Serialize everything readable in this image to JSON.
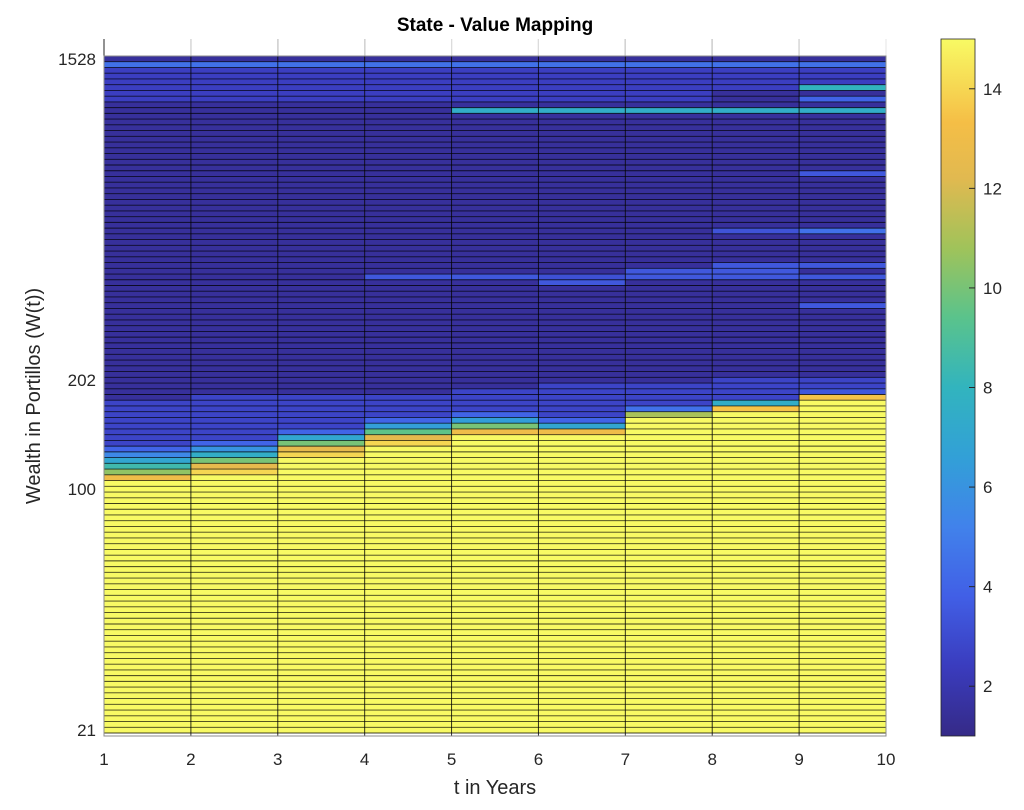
{
  "chart_data": {
    "type": "heatmap",
    "title": "State - Value Mapping",
    "xlabel": "t in Years",
    "ylabel": "Wealth in Portillos (W(t))",
    "x_ticks": [
      "1",
      "2",
      "3",
      "4",
      "5",
      "6",
      "7",
      "8",
      "9",
      "10"
    ],
    "xlim": [
      1,
      10
    ],
    "y_ticks": [
      {
        "label": "1528",
        "row": 0
      },
      {
        "label": "202",
        "row": 56
      },
      {
        "label": "100",
        "row": 75
      },
      {
        "label": "21",
        "row": 117
      }
    ],
    "n_rows": 118,
    "row_order": "top-to-bottom (row 0 = 1528, row 117 = 21)",
    "colormap": "parula",
    "clim": [
      1,
      15
    ],
    "colorbar_ticks": [
      "2",
      "4",
      "6",
      "8",
      "10",
      "12",
      "14"
    ],
    "grid": true,
    "default_value": 1.5,
    "columns": [
      {
        "x": [
          1,
          2
        ],
        "segments": [
          {
            "rows": [
              1,
              1
            ],
            "value": 4.5
          },
          {
            "rows": [
              2,
              7
            ],
            "value": 2.5
          },
          {
            "rows": [
              60,
              67
            ],
            "value": 2.7
          },
          {
            "rows": [
              68,
              68
            ],
            "value": 4
          },
          {
            "rows": [
              69,
              69
            ],
            "value": 5.5
          },
          {
            "rows": [
              70,
              70
            ],
            "value": 7
          },
          {
            "rows": [
              71,
              71
            ],
            "value": 8.5
          },
          {
            "rows": [
              72,
              72
            ],
            "value": 10.5
          },
          {
            "rows": [
              73,
              73
            ],
            "value": 13
          },
          {
            "rows": [
              74,
              117
            ],
            "value": 15
          }
        ]
      },
      {
        "x": [
          2,
          3
        ],
        "segments": [
          {
            "rows": [
              1,
              1
            ],
            "value": 4.5
          },
          {
            "rows": [
              2,
              7
            ],
            "value": 2.5
          },
          {
            "rows": [
              59,
              66
            ],
            "value": 2.7
          },
          {
            "rows": [
              67,
              67
            ],
            "value": 4
          },
          {
            "rows": [
              68,
              68
            ],
            "value": 6
          },
          {
            "rows": [
              69,
              69
            ],
            "value": 7.5
          },
          {
            "rows": [
              70,
              70
            ],
            "value": 10
          },
          {
            "rows": [
              71,
              71
            ],
            "value": 12.5
          },
          {
            "rows": [
              72,
              72
            ],
            "value": 14
          },
          {
            "rows": [
              73,
              117
            ],
            "value": 15
          }
        ]
      },
      {
        "x": [
          3,
          4
        ],
        "segments": [
          {
            "rows": [
              1,
              1
            ],
            "value": 4.5
          },
          {
            "rows": [
              2,
              7
            ],
            "value": 2.5
          },
          {
            "rows": [
              59,
              64
            ],
            "value": 2.7
          },
          {
            "rows": [
              65,
              65
            ],
            "value": 4
          },
          {
            "rows": [
              66,
              66
            ],
            "value": 7
          },
          {
            "rows": [
              67,
              67
            ],
            "value": 10
          },
          {
            "rows": [
              68,
              68
            ],
            "value": 12.5
          },
          {
            "rows": [
              69,
              69
            ],
            "value": 14
          },
          {
            "rows": [
              70,
              117
            ],
            "value": 15
          }
        ]
      },
      {
        "x": [
          4,
          5
        ],
        "segments": [
          {
            "rows": [
              1,
              1
            ],
            "value": 4.5
          },
          {
            "rows": [
              2,
              7
            ],
            "value": 2.5
          },
          {
            "rows": [
              38,
              38
            ],
            "value": 3.5
          },
          {
            "rows": [
              59,
              62
            ],
            "value": 2.7
          },
          {
            "rows": [
              63,
              63
            ],
            "value": 4
          },
          {
            "rows": [
              64,
              64
            ],
            "value": 6.5
          },
          {
            "rows": [
              65,
              65
            ],
            "value": 9.5
          },
          {
            "rows": [
              66,
              66
            ],
            "value": 12.5
          },
          {
            "rows": [
              67,
              67
            ],
            "value": 14
          },
          {
            "rows": [
              68,
              117
            ],
            "value": 15
          }
        ]
      },
      {
        "x": [
          5,
          6
        ],
        "segments": [
          {
            "rows": [
              1,
              1
            ],
            "value": 4.5
          },
          {
            "rows": [
              2,
              7
            ],
            "value": 2.5
          },
          {
            "rows": [
              9,
              9
            ],
            "value": 7.5
          },
          {
            "rows": [
              38,
              38
            ],
            "value": 3.5
          },
          {
            "rows": [
              58,
              61
            ],
            "value": 2.7
          },
          {
            "rows": [
              62,
              62
            ],
            "value": 4
          },
          {
            "rows": [
              63,
              63
            ],
            "value": 6.5
          },
          {
            "rows": [
              64,
              64
            ],
            "value": 10
          },
          {
            "rows": [
              65,
              65
            ],
            "value": 13
          },
          {
            "rows": [
              66,
              117
            ],
            "value": 15
          }
        ]
      },
      {
        "x": [
          6,
          7
        ],
        "segments": [
          {
            "rows": [
              1,
              1
            ],
            "value": 4.5
          },
          {
            "rows": [
              2,
              7
            ],
            "value": 2.5
          },
          {
            "rows": [
              9,
              9
            ],
            "value": 7.5
          },
          {
            "rows": [
              38,
              38
            ],
            "value": 3.2
          },
          {
            "rows": [
              39,
              39
            ],
            "value": 3.5
          },
          {
            "rows": [
              57,
              62
            ],
            "value": 2.7
          },
          {
            "rows": [
              63,
              63
            ],
            "value": 4
          },
          {
            "rows": [
              64,
              64
            ],
            "value": 7
          },
          {
            "rows": [
              65,
              65
            ],
            "value": 13
          },
          {
            "rows": [
              66,
              117
            ],
            "value": 15
          }
        ]
      },
      {
        "x": [
          7,
          8
        ],
        "segments": [
          {
            "rows": [
              1,
              1
            ],
            "value": 4.5
          },
          {
            "rows": [
              2,
              7
            ],
            "value": 2.5
          },
          {
            "rows": [
              9,
              9
            ],
            "value": 7.5
          },
          {
            "rows": [
              37,
              37
            ],
            "value": 3.5
          },
          {
            "rows": [
              38,
              38
            ],
            "value": 3.5
          },
          {
            "rows": [
              57,
              60
            ],
            "value": 2.7
          },
          {
            "rows": [
              61,
              61
            ],
            "value": 4.5
          },
          {
            "rows": [
              62,
              62
            ],
            "value": 11
          },
          {
            "rows": [
              63,
              117
            ],
            "value": 15
          }
        ]
      },
      {
        "x": [
          8,
          9
        ],
        "segments": [
          {
            "rows": [
              1,
              1
            ],
            "value": 4.5
          },
          {
            "rows": [
              2,
              5
            ],
            "value": 2.5
          },
          {
            "rows": [
              9,
              9
            ],
            "value": 7.5
          },
          {
            "rows": [
              30,
              30
            ],
            "value": 3.3
          },
          {
            "rows": [
              36,
              36
            ],
            "value": 3.5
          },
          {
            "rows": [
              37,
              37
            ],
            "value": 3.5
          },
          {
            "rows": [
              38,
              38
            ],
            "value": 3.5
          },
          {
            "rows": [
              56,
              59
            ],
            "value": 2.7
          },
          {
            "rows": [
              60,
              60
            ],
            "value": 7.5
          },
          {
            "rows": [
              61,
              61
            ],
            "value": 13.5
          },
          {
            "rows": [
              62,
              117
            ],
            "value": 15
          }
        ]
      },
      {
        "x": [
          9,
          10
        ],
        "segments": [
          {
            "rows": [
              1,
              1
            ],
            "value": 4.5
          },
          {
            "rows": [
              2,
              4
            ],
            "value": 2.5
          },
          {
            "rows": [
              5,
              5
            ],
            "value": 8
          },
          {
            "rows": [
              7,
              7
            ],
            "value": 4
          },
          {
            "rows": [
              9,
              9
            ],
            "value": 7.5
          },
          {
            "rows": [
              20,
              20
            ],
            "value": 3.5
          },
          {
            "rows": [
              30,
              30
            ],
            "value": 4.5
          },
          {
            "rows": [
              36,
              36
            ],
            "value": 3.5
          },
          {
            "rows": [
              38,
              38
            ],
            "value": 3.5
          },
          {
            "rows": [
              43,
              43
            ],
            "value": 3.5
          },
          {
            "rows": [
              56,
              57
            ],
            "value": 2.7
          },
          {
            "rows": [
              58,
              58
            ],
            "value": 3.5
          },
          {
            "rows": [
              59,
              59
            ],
            "value": 13.5
          },
          {
            "rows": [
              60,
              117
            ],
            "value": 15
          }
        ]
      }
    ]
  }
}
